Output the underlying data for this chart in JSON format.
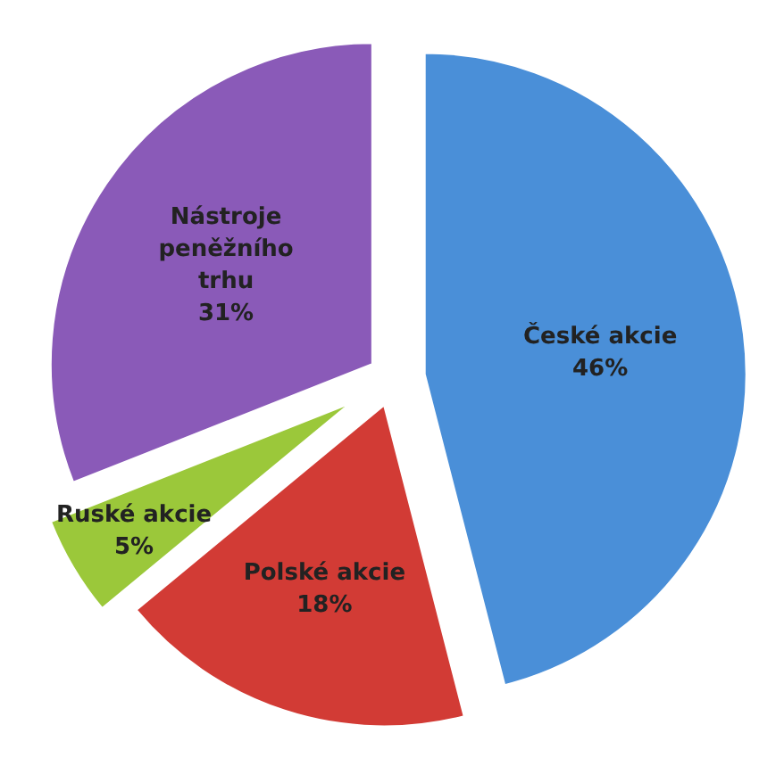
{
  "chart_data": {
    "type": "pie",
    "categories": [
      "České akcie",
      "Polské akcie",
      "Ruské akcie",
      "Nástroje peněžního trhu"
    ],
    "values": [
      46,
      18,
      5,
      31
    ],
    "value_labels": [
      "46%",
      "18%",
      "5%",
      "31%"
    ],
    "colors": [
      "#4a8fd8",
      "#d23b35",
      "#9bc83a",
      "#8a5ab8"
    ]
  }
}
